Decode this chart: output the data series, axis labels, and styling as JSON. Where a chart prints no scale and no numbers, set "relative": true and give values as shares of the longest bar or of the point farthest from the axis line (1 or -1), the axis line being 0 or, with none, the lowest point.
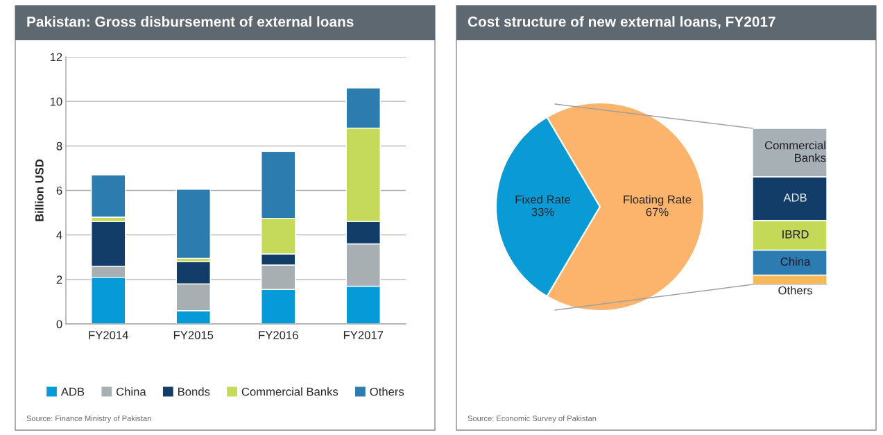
{
  "chart_data": [
    {
      "type": "bar",
      "title": "Pakistan: Gross disbursement of external loans",
      "ylabel": "Billion USD",
      "categories": [
        "FY2014",
        "FY2015",
        "FY2016",
        "FY2017"
      ],
      "stacked": true,
      "series": [
        {
          "name": "ADB",
          "color": "#069bd8",
          "values": [
            2.1,
            0.6,
            1.55,
            1.7
          ]
        },
        {
          "name": "China",
          "color": "#a7afb3",
          "values": [
            0.5,
            1.2,
            1.1,
            1.9
          ]
        },
        {
          "name": "Bonds",
          "color": "#123d68",
          "values": [
            2.0,
            1.0,
            0.5,
            1.0
          ]
        },
        {
          "name": "Commercial Banks",
          "color": "#c5d95a",
          "values": [
            0.2,
            0.15,
            1.6,
            4.2
          ]
        },
        {
          "name": "Others",
          "color": "#2c7cb0",
          "values": [
            1.9,
            3.1,
            3.0,
            1.8
          ]
        }
      ],
      "ylim": [
        0,
        12
      ],
      "yticks": [
        0,
        2,
        4,
        6,
        8,
        10,
        12
      ],
      "grid": "y",
      "legend": "bottom",
      "annotations": [
        "Source: Finance Ministry of Pakistan"
      ]
    },
    {
      "type": "pie",
      "title": "Cost structure of new external loans, FY2017",
      "categories": [
        "Fixed Rate",
        "Floating Rate"
      ],
      "values": [
        33,
        67
      ],
      "value_labels": [
        "33%",
        "67%"
      ],
      "colors": [
        "#0a9ad6",
        "#fcb36c"
      ],
      "annotations": [
        "Source: Economic Survey of Pakistan"
      ]
    },
    {
      "type": "bar",
      "relative": true,
      "stacked": true,
      "categories": [
        null
      ],
      "series": [
        {
          "name": "Others",
          "color": "#f7b85a",
          "values": [
            0.06
          ]
        },
        {
          "name": "China",
          "color": "#2c7bb1",
          "values": [
            0.16
          ]
        },
        {
          "name": "IBRD",
          "color": "#c5d958",
          "values": [
            0.19
          ]
        },
        {
          "name": "ADB",
          "color": "#123d69",
          "values": [
            0.28
          ]
        },
        {
          "name": "Commercial Banks",
          "color": "#a7b0b4",
          "values": [
            0.31
          ]
        }
      ]
    }
  ]
}
